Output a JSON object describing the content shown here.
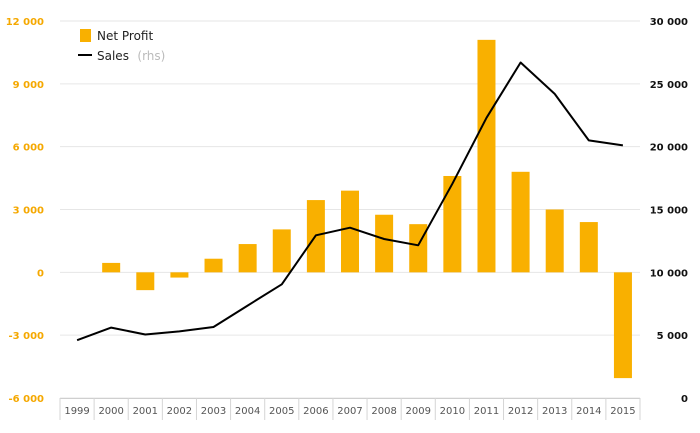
{
  "chart_data": {
    "type": "bar",
    "title": "",
    "xlabel": "",
    "ylabel": "",
    "categories": [
      "1999",
      "2000",
      "2001",
      "2002",
      "2003",
      "2004",
      "2005",
      "2006",
      "2007",
      "2008",
      "2009",
      "2010",
      "2011",
      "2012",
      "2013",
      "2014",
      "2015"
    ],
    "series": [
      {
        "name": "Net Profit",
        "type": "bar",
        "axis": "left",
        "color": "#f9b000",
        "values": [
          0,
          450,
          -850,
          -250,
          650,
          1350,
          2050,
          3450,
          3900,
          2750,
          2300,
          4600,
          11100,
          4800,
          3000,
          2400,
          -5050
        ]
      },
      {
        "name": "Sales",
        "name_suffix": "(rhs)",
        "type": "line",
        "axis": "right",
        "color": "#000000",
        "values": [
          4600,
          5600,
          5050,
          5300,
          5650,
          7350,
          9050,
          12950,
          13550,
          12650,
          12150,
          17050,
          22300,
          26700,
          24200,
          20500,
          20100
        ]
      }
    ],
    "y_left": {
      "min": -6000,
      "max": 12000,
      "ticks": [
        -6000,
        -3000,
        0,
        3000,
        6000,
        9000,
        12000
      ],
      "tick_labels": [
        "-6 000",
        "-3 000",
        "0",
        "3 000",
        "6 000",
        "9 000",
        "12 000"
      ],
      "color": "#f5a800"
    },
    "y_right": {
      "min": 0,
      "max": 30000,
      "ticks": [
        0,
        5000,
        10000,
        15000,
        20000,
        25000,
        30000
      ],
      "tick_labels": [
        "0",
        "5 000",
        "10 000",
        "15 000",
        "20 000",
        "25 000",
        "30 000"
      ],
      "color": "#111111"
    },
    "grid": true,
    "legend_position": "top-left"
  }
}
